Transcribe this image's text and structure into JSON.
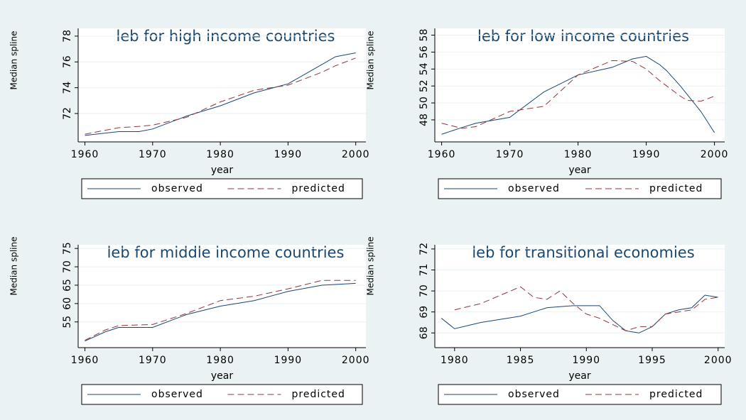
{
  "chart_data": [
    {
      "type": "line",
      "title": "leb for high income countries",
      "x_label": "year",
      "y_label": "Median spline",
      "x": [
        1960,
        1965,
        1968,
        1970,
        1975,
        1980,
        1985,
        1990,
        1995,
        1997,
        2000
      ],
      "series": [
        {
          "name": "observed",
          "color": "#1a476f",
          "values": [
            70.3,
            70.6,
            70.6,
            70.8,
            71.8,
            72.6,
            73.6,
            74.3,
            75.8,
            76.4,
            76.7
          ]
        },
        {
          "name": "predicted",
          "color": "#90353b",
          "values": [
            70.4,
            70.9,
            71.0,
            71.1,
            71.7,
            72.9,
            73.8,
            74.2,
            75.2,
            75.7,
            76.3
          ]
        }
      ],
      "xlim": [
        1959,
        2001.5
      ],
      "ylim": [
        69.8,
        78.6
      ],
      "xticks": [
        1960,
        1970,
        1980,
        1990,
        2000
      ],
      "yticks": [
        72,
        74,
        76,
        78
      ],
      "grid": true
    },
    {
      "type": "line",
      "title": "leb for low income countries",
      "x_label": "year",
      "y_label": "Median spline",
      "x": [
        1960,
        1963,
        1965,
        1970,
        1975,
        1980,
        1985,
        1988,
        1990,
        1992,
        1993,
        1995,
        1996,
        1998,
        2000
      ],
      "series": [
        {
          "name": "observed",
          "color": "#1a476f",
          "values": [
            46.3,
            47.1,
            47.6,
            48.3,
            51.3,
            53.3,
            54.2,
            55.2,
            55.5,
            54.5,
            53.8,
            52.0,
            51.0,
            49.0,
            46.5
          ]
        },
        {
          "name": "predicted",
          "color": "#90353b",
          "values": [
            47.6,
            47.0,
            47.2,
            49.0,
            49.6,
            53.3,
            55.0,
            54.9,
            54.0,
            52.6,
            52.0,
            50.8,
            50.3,
            50.2,
            50.8
          ]
        }
      ],
      "xlim": [
        1959,
        2001.5
      ],
      "ylim": [
        45.4,
        58.8
      ],
      "xticks": [
        1960,
        1970,
        1980,
        1990,
        2000
      ],
      "yticks": [
        48,
        50,
        52,
        54,
        56,
        58
      ],
      "grid": true
    },
    {
      "type": "line",
      "title": "leb for middle income countries",
      "x_label": "year",
      "y_label": "Median spline",
      "x": [
        1960,
        1963,
        1965,
        1970,
        1975,
        1980,
        1985,
        1990,
        1995,
        2000
      ],
      "series": [
        {
          "name": "observed",
          "color": "#1a476f",
          "values": [
            49.8,
            52.3,
            53.5,
            53.5,
            57.0,
            59.3,
            60.8,
            63.3,
            65.0,
            65.5
          ]
        },
        {
          "name": "predicted",
          "color": "#90353b",
          "values": [
            50.0,
            52.8,
            54.0,
            54.3,
            57.3,
            60.8,
            62.0,
            64.0,
            66.3,
            66.3
          ]
        }
      ],
      "xlim": [
        1959,
        2001.5
      ],
      "ylim": [
        48,
        76
      ],
      "xticks": [
        1960,
        1970,
        1980,
        1990,
        2000
      ],
      "yticks": [
        55,
        60,
        65,
        70,
        75
      ],
      "grid": true
    },
    {
      "type": "line",
      "title": "leb for transitional economies",
      "x_label": "year",
      "y_label": "Median spline",
      "x": [
        1979,
        1980,
        1982,
        1985,
        1986,
        1987,
        1988,
        1989,
        1990,
        1991,
        1992,
        1993,
        1994,
        1995,
        1996,
        1997,
        1998,
        1999,
        2000
      ],
      "series": [
        {
          "name": "observed",
          "color": "#1a476f",
          "values": [
            68.7,
            68.2,
            68.5,
            68.8,
            69.0,
            69.2,
            69.25,
            69.3,
            69.3,
            69.3,
            68.6,
            68.1,
            68.0,
            68.3,
            68.9,
            69.1,
            69.2,
            69.8,
            69.7
          ]
        },
        {
          "name": "predicted",
          "color": "#90353b",
          "values": [
            null,
            69.1,
            69.4,
            70.2,
            69.7,
            69.6,
            70.0,
            69.4,
            68.9,
            68.7,
            68.4,
            68.1,
            68.3,
            68.3,
            68.9,
            69.0,
            69.1,
            69.6,
            69.7
          ]
        }
      ],
      "xlim": [
        1978.5,
        2000.5
      ],
      "ylim": [
        67.3,
        72.2
      ],
      "xticks": [
        1980,
        1985,
        1990,
        1995,
        2000
      ],
      "yticks": [
        68,
        69,
        70,
        71,
        72
      ],
      "grid": true
    }
  ]
}
